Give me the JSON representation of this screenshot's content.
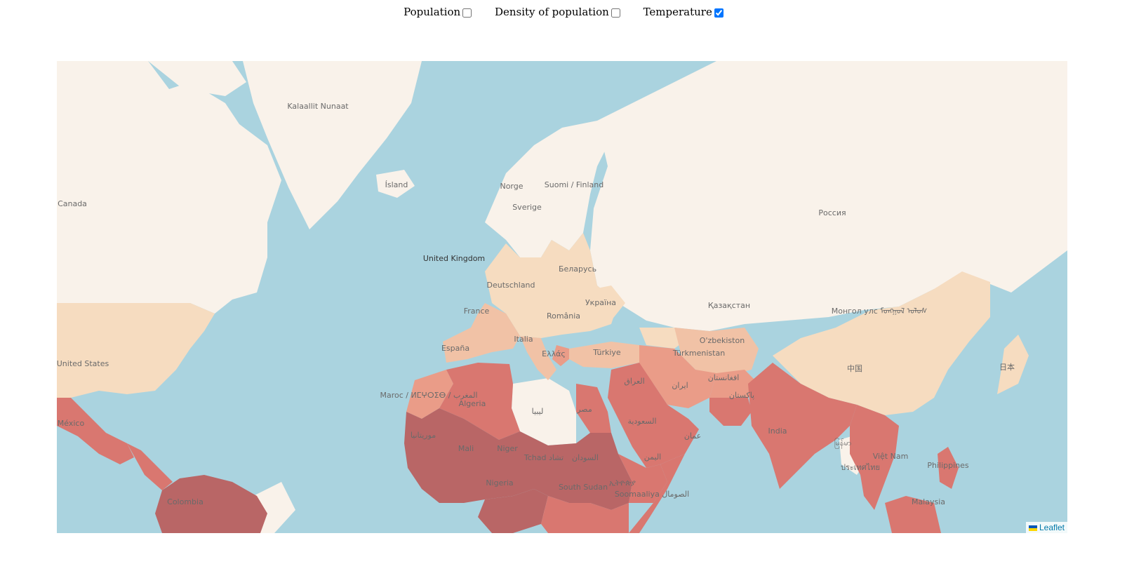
{
  "controls": {
    "population": {
      "label": "Population",
      "checked": false
    },
    "density": {
      "label": "Density of population",
      "checked": false
    },
    "temperature": {
      "label": "Temperature",
      "checked": true
    }
  },
  "colors": {
    "ocean": "#aad3df",
    "land": "#f9f2ea",
    "temp_cold": "#f6dcc0",
    "temp_cool": "#f1c2a6",
    "temp_mild": "#ea9c88",
    "temp_warm": "#d97770",
    "temp_hot": "#b96666"
  },
  "map": {
    "labels": {
      "canada": "Canada",
      "greenland": "Kalaallit Nunaat",
      "iceland": "Ísland",
      "norway": "Norge",
      "sweden": "Sverige",
      "finland": "Suomi / Finland",
      "russia": "Россия",
      "uk": "United Kingdom",
      "belarus": "Беларусь",
      "germany": "Deutschland",
      "ukraine": "Україна",
      "france": "France",
      "romania": "România",
      "kazakhstan": "Қазақстан",
      "mongolia": "Монгол улс ᠮᠤᠩᠭᠤᠯ ᠤᠯᠤᠰ",
      "usa": "United States",
      "italy": "Italia",
      "spain": "España",
      "uzbekistan": "O'zbekiston",
      "turkmenistan": "Türkmenistan",
      "turkey": "Türkiye",
      "greece": "Ελλάς",
      "china": "中国",
      "japan": "日本",
      "iraq": "العراق",
      "iran": "ایران",
      "afghanistan": "افغانستان",
      "morocco": "Maroc / ⵍⵎⵖⵔⵉⴱ / المغرب",
      "algeria": "Algeria",
      "libya": "ليبيا",
      "egypt": "مصر",
      "pakistan": "پاکستان",
      "saudi": "السعودية",
      "mexico": "México",
      "mauritania": "موريتانيا",
      "india": "India",
      "oman": "عمان",
      "mali": "Mali",
      "niger": "Niger",
      "chad": "Tchad تشاد",
      "sudan": "السودان",
      "yemen": "اليمن",
      "vietnam": "Việt Nam",
      "philippines": "Philippines",
      "nigeria": "Nigeria",
      "ethiopia": "ኢትዮጵያ",
      "south_sudan": "South Sudan",
      "somalia": "Soomaaliya الصومال",
      "thailand": "ประเทศไทย",
      "myanmar": "မြန်မာ",
      "colombia": "Colombia",
      "malaysia": "Malaysia"
    },
    "attribution": "Leaflet"
  }
}
